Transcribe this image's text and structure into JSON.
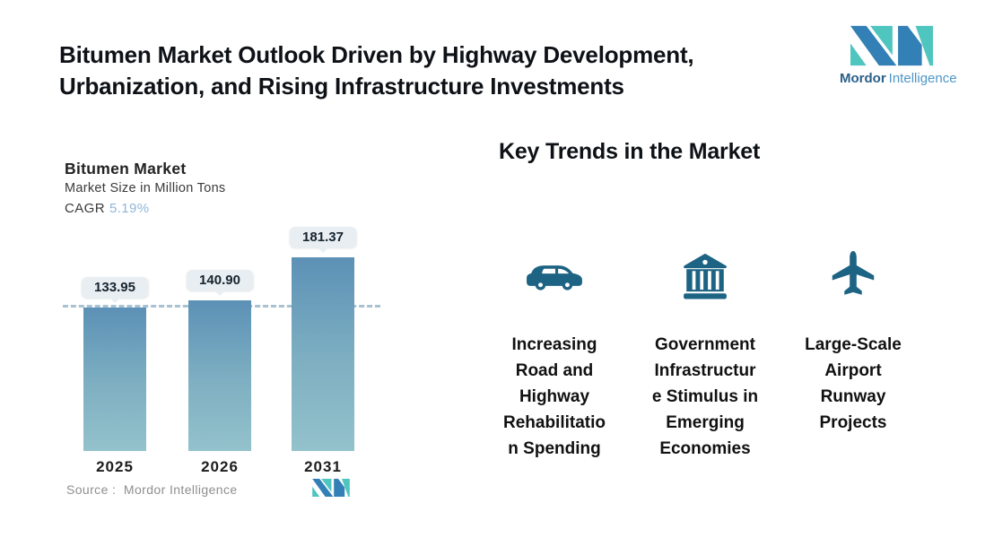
{
  "page": {
    "title": "Bitumen Market Outlook Driven by Highway Development,\nUrbanization, and Rising Infrastructure Investments"
  },
  "brand": {
    "name_primary": "Mordor",
    "name_secondary": "Intelligence",
    "colors": {
      "dark_blue": "#3380b6",
      "teal": "#4fc5bf"
    }
  },
  "chart": {
    "title": "Bitumen Market",
    "subtitle": "Market Size in Million Tons",
    "cagr_label": "CAGR",
    "cagr_value": "5.19%",
    "source_text": "Source :  Mordor Intelligence"
  },
  "chart_data": {
    "type": "bar",
    "title": "Bitumen Market",
    "ylabel": "Market Size in Million Tons",
    "cagr_percent": 5.19,
    "categories": [
      "2025",
      "2026",
      "2031"
    ],
    "values": [
      133.95,
      140.9,
      181.37
    ],
    "value_labels": [
      "133.95",
      "140.90",
      "181.37"
    ],
    "reference_line": 133.95,
    "bar_gradient_top": "#5c91b6",
    "bar_gradient_bottom": "#93c2cc",
    "dashed_line_color": "#a9c2d1",
    "legend": "none",
    "grid": "off"
  },
  "trends": {
    "heading": "Key Trends in the Market",
    "items": [
      {
        "icon": "car-icon",
        "label": "Increasing\nRoad and\nHighway\nRehabilitatio\nn Spending"
      },
      {
        "icon": "bank-icon",
        "label": "Government\nInfrastructur\ne Stimulus in\nEmerging\nEconomies"
      },
      {
        "icon": "airplane-icon",
        "label": "Large-Scale\nAirport\nRunway\nProjects"
      }
    ],
    "icon_color": "#1d6384"
  }
}
